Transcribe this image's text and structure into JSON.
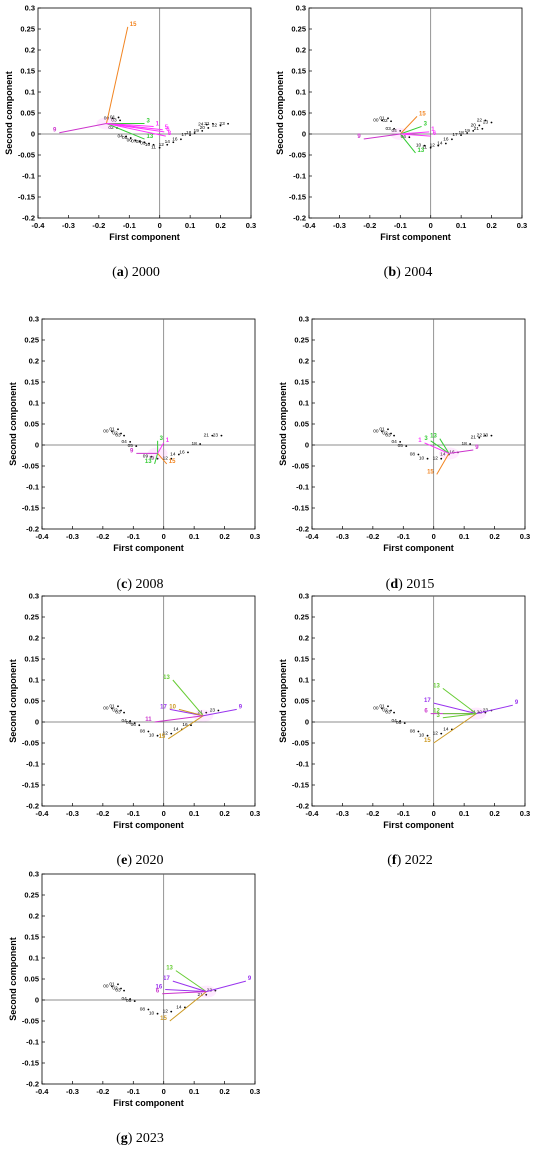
{
  "chart_data": [
    {
      "type": "scatter",
      "caption_letter": "a",
      "caption_year": "2000",
      "xlabel": "First component",
      "ylabel": "Second component",
      "xlim": [
        -0.4,
        0.3
      ],
      "ylim": [
        -0.2,
        0.3
      ],
      "xticks": [
        "-0.4",
        "-0.3",
        "-0.2",
        "-0.1",
        "0",
        "0.1",
        "0.2",
        "0.3"
      ],
      "yticks": [
        "-0.2",
        "-0.15",
        "-0.1",
        "-0.05",
        "0",
        "0.05",
        "0.1",
        "0.15",
        "0.2",
        "0.25",
        "0.3"
      ],
      "point_labels": [
        {
          "label": "00",
          "x": -0.175,
          "y": 0.035
        },
        {
          "label": "01",
          "x": -0.155,
          "y": 0.037
        },
        {
          "label": "02",
          "x": -0.16,
          "y": 0.012
        },
        {
          "label": "03",
          "x": -0.15,
          "y": 0.03
        },
        {
          "label": "04",
          "x": -0.13,
          "y": -0.008
        },
        {
          "label": "05",
          "x": -0.115,
          "y": -0.012
        },
        {
          "label": "06",
          "x": -0.1,
          "y": -0.018
        },
        {
          "label": "07",
          "x": -0.085,
          "y": -0.02
        },
        {
          "label": "08",
          "x": -0.07,
          "y": -0.022
        },
        {
          "label": "09",
          "x": -0.055,
          "y": -0.025
        },
        {
          "label": "10",
          "x": -0.04,
          "y": -0.028
        },
        {
          "label": "11",
          "x": -0.02,
          "y": -0.035
        },
        {
          "label": "12",
          "x": 0.005,
          "y": -0.028
        },
        {
          "label": "14",
          "x": 0.025,
          "y": -0.022
        },
        {
          "label": "16",
          "x": 0.05,
          "y": -0.015
        },
        {
          "label": "17",
          "x": 0.08,
          "y": -0.005
        },
        {
          "label": "18",
          "x": 0.095,
          "y": 0.0
        },
        {
          "label": "19",
          "x": 0.12,
          "y": 0.005
        },
        {
          "label": "20",
          "x": 0.14,
          "y": 0.012
        },
        {
          "label": "21",
          "x": 0.155,
          "y": 0.022
        },
        {
          "label": "22",
          "x": 0.18,
          "y": 0.018
        },
        {
          "label": "23",
          "x": 0.205,
          "y": 0.022
        },
        {
          "label": "24",
          "x": 0.135,
          "y": 0.02
        }
      ],
      "vectors": [
        {
          "label": "15",
          "x": -0.105,
          "y": 0.255,
          "color": "#f28522"
        },
        {
          "label": "9",
          "x": -0.33,
          "y": 0.003,
          "color": "#cc33cc"
        },
        {
          "label": "3",
          "x": -0.05,
          "y": 0.025,
          "color": "#33cc33"
        },
        {
          "label": "13",
          "x": -0.05,
          "y": -0.012,
          "color": "#33cc33"
        },
        {
          "label": "1",
          "x": -0.02,
          "y": 0.018,
          "color": "#ff33ff"
        },
        {
          "label": "5",
          "x": 0.01,
          "y": 0.01,
          "color": "#ff33ff"
        },
        {
          "label": "6",
          "x": 0.015,
          "y": 0.005,
          "color": "#ff33ff"
        },
        {
          "label": "8",
          "x": 0.02,
          "y": -0.005,
          "color": "#ff33ff"
        }
      ],
      "vector_origin": [
        -0.175,
        0.025
      ]
    },
    {
      "type": "scatter",
      "caption_letter": "b",
      "caption_year": "2004",
      "xlabel": "First component",
      "ylabel": "Second component",
      "xlim": [
        -0.4,
        0.3
      ],
      "ylim": [
        -0.2,
        0.3
      ],
      "xticks": [
        "-0.4",
        "-0.3",
        "-0.2",
        "-0.1",
        "0",
        "0.1",
        "0.2",
        "0.3"
      ],
      "yticks": [
        "-0.2",
        "-0.15",
        "-0.1",
        "-0.05",
        "0",
        "0.05",
        "0.1",
        "0.15",
        "0.2",
        "0.25",
        "0.3"
      ],
      "point_labels": [
        {
          "label": "00",
          "x": -0.18,
          "y": 0.03
        },
        {
          "label": "01",
          "x": -0.16,
          "y": 0.035
        },
        {
          "label": "02",
          "x": -0.15,
          "y": 0.028
        },
        {
          "label": "03",
          "x": -0.14,
          "y": 0.01
        },
        {
          "label": "04",
          "x": -0.12,
          "y": 0.005
        },
        {
          "label": "06",
          "x": -0.09,
          "y": -0.01
        },
        {
          "label": "10",
          "x": -0.04,
          "y": -0.03
        },
        {
          "label": "11",
          "x": -0.02,
          "y": -0.035
        },
        {
          "label": "12",
          "x": 0.005,
          "y": -0.03
        },
        {
          "label": "14",
          "x": 0.03,
          "y": -0.025
        },
        {
          "label": "16",
          "x": 0.05,
          "y": -0.015
        },
        {
          "label": "17",
          "x": 0.08,
          "y": -0.005
        },
        {
          "label": "18",
          "x": 0.1,
          "y": 0.0
        },
        {
          "label": "19",
          "x": 0.12,
          "y": 0.005
        },
        {
          "label": "20",
          "x": 0.14,
          "y": 0.018
        },
        {
          "label": "21",
          "x": 0.15,
          "y": 0.01
        },
        {
          "label": "22",
          "x": 0.16,
          "y": 0.03
        },
        {
          "label": "23",
          "x": 0.18,
          "y": 0.025
        }
      ],
      "vectors": [
        {
          "label": "15",
          "x": -0.045,
          "y": 0.042,
          "color": "#f28522"
        },
        {
          "label": "9",
          "x": -0.22,
          "y": -0.012,
          "color": "#cc33cc"
        },
        {
          "label": "3",
          "x": -0.03,
          "y": 0.018,
          "color": "#33cc33"
        },
        {
          "label": "13",
          "x": -0.05,
          "y": -0.045,
          "color": "#33cc33"
        },
        {
          "label": "1",
          "x": -0.005,
          "y": 0.005,
          "color": "#ff33ff"
        },
        {
          "label": "6",
          "x": 0.0,
          "y": -0.005,
          "color": "#ff33ff"
        }
      ],
      "vector_origin": [
        -0.1,
        0.0
      ]
    },
    {
      "type": "scatter",
      "caption_letter": "c",
      "caption_year": "2008",
      "xlabel": "First component",
      "ylabel": "Second component",
      "xlim": [
        -0.4,
        0.3
      ],
      "ylim": [
        -0.2,
        0.3
      ],
      "xticks": [
        "-0.4",
        "-0.3",
        "-0.2",
        "-0.1",
        "0",
        "0.1",
        "0.2",
        "0.3"
      ],
      "yticks": [
        "-0.2",
        "-0.15",
        "-0.1",
        "-0.05",
        "0",
        "0.05",
        "0.1",
        "0.15",
        "0.2",
        "0.25",
        "0.3"
      ],
      "point_labels": [
        {
          "label": "00",
          "x": -0.19,
          "y": 0.03
        },
        {
          "label": "01",
          "x": -0.17,
          "y": 0.035
        },
        {
          "label": "02",
          "x": -0.16,
          "y": 0.025
        },
        {
          "label": "03",
          "x": -0.15,
          "y": 0.02
        },
        {
          "label": "04",
          "x": -0.13,
          "y": 0.005
        },
        {
          "label": "05",
          "x": -0.11,
          "y": -0.005
        },
        {
          "label": "09",
          "x": -0.06,
          "y": -0.03
        },
        {
          "label": "10",
          "x": -0.04,
          "y": -0.035
        },
        {
          "label": "12",
          "x": 0.005,
          "y": -0.035
        },
        {
          "label": "14",
          "x": 0.03,
          "y": -0.025
        },
        {
          "label": "16",
          "x": 0.06,
          "y": -0.02
        },
        {
          "label": "18",
          "x": 0.1,
          "y": 0.0
        },
        {
          "label": "21",
          "x": 0.14,
          "y": 0.02
        },
        {
          "label": "23",
          "x": 0.17,
          "y": 0.02
        }
      ],
      "vectors": [
        {
          "label": "15",
          "x": 0.01,
          "y": -0.045,
          "color": "#f28522"
        },
        {
          "label": "9",
          "x": -0.09,
          "y": -0.02,
          "color": "#cc33cc"
        },
        {
          "label": "13",
          "x": -0.03,
          "y": -0.045,
          "color": "#33cc33"
        },
        {
          "label": "3",
          "x": -0.02,
          "y": 0.01,
          "color": "#33cc33"
        },
        {
          "label": "1",
          "x": 0.0,
          "y": 0.005,
          "color": "#ff33ff"
        }
      ],
      "vector_origin": [
        -0.02,
        -0.02
      ]
    },
    {
      "type": "scatter",
      "caption_letter": "d",
      "caption_year": "2015",
      "xlabel": "First component",
      "ylabel": "Second component",
      "xlim": [
        -0.4,
        0.3
      ],
      "ylim": [
        -0.2,
        0.3
      ],
      "xticks": [
        "-0.4",
        "-0.3",
        "-0.2",
        "-0.1",
        "0",
        "0.1",
        "0.2",
        "0.3"
      ],
      "yticks": [
        "-0.2",
        "-0.15",
        "-0.1",
        "-0.05",
        "0",
        "0.05",
        "0.1",
        "0.15",
        "0.2",
        "0.25",
        "0.3"
      ],
      "point_labels": [
        {
          "label": "00",
          "x": -0.19,
          "y": 0.03
        },
        {
          "label": "01",
          "x": -0.17,
          "y": 0.035
        },
        {
          "label": "02",
          "x": -0.16,
          "y": 0.025
        },
        {
          "label": "03",
          "x": -0.15,
          "y": 0.02
        },
        {
          "label": "04",
          "x": -0.13,
          "y": 0.005
        },
        {
          "label": "05",
          "x": -0.11,
          "y": -0.005
        },
        {
          "label": "08",
          "x": -0.07,
          "y": -0.025
        },
        {
          "label": "10",
          "x": -0.04,
          "y": -0.035
        },
        {
          "label": "12",
          "x": 0.005,
          "y": -0.035
        },
        {
          "label": "14",
          "x": 0.03,
          "y": -0.025
        },
        {
          "label": "16",
          "x": 0.06,
          "y": -0.02
        },
        {
          "label": "18",
          "x": 0.1,
          "y": 0.0
        },
        {
          "label": "21",
          "x": 0.13,
          "y": 0.015
        },
        {
          "label": "22",
          "x": 0.15,
          "y": 0.02
        },
        {
          "label": "23",
          "x": 0.17,
          "y": 0.02
        }
      ],
      "vectors": [
        {
          "label": "15",
          "x": 0.01,
          "y": -0.07,
          "color": "#f28522"
        },
        {
          "label": "9",
          "x": 0.13,
          "y": -0.012,
          "color": "#cc33cc"
        },
        {
          "label": "13",
          "x": 0.02,
          "y": 0.015,
          "color": "#33cc33"
        },
        {
          "label": "3",
          "x": -0.01,
          "y": 0.01,
          "color": "#33cc33"
        },
        {
          "label": "1",
          "x": -0.03,
          "y": 0.005,
          "color": "#ff33ff"
        }
      ],
      "vector_origin": [
        0.05,
        -0.02
      ]
    },
    {
      "type": "scatter",
      "caption_letter": "e",
      "caption_year": "2020",
      "xlabel": "First component",
      "ylabel": "Second component",
      "xlim": [
        -0.4,
        0.3
      ],
      "ylim": [
        -0.2,
        0.3
      ],
      "xticks": [
        "-0.4",
        "-0.3",
        "-0.2",
        "-0.1",
        "0",
        "0.1",
        "0.2",
        "0.3"
      ],
      "yticks": [
        "-0.2",
        "-0.15",
        "-0.1",
        "-0.05",
        "0",
        "0.05",
        "0.1",
        "0.15",
        "0.2",
        "0.25",
        "0.3"
      ],
      "point_labels": [
        {
          "label": "00",
          "x": -0.19,
          "y": 0.03
        },
        {
          "label": "01",
          "x": -0.17,
          "y": 0.035
        },
        {
          "label": "02",
          "x": -0.16,
          "y": 0.025
        },
        {
          "label": "03",
          "x": -0.15,
          "y": 0.02
        },
        {
          "label": "04",
          "x": -0.13,
          "y": 0.0
        },
        {
          "label": "05",
          "x": -0.115,
          "y": -0.005
        },
        {
          "label": "06",
          "x": -0.1,
          "y": -0.01
        },
        {
          "label": "08",
          "x": -0.07,
          "y": -0.025
        },
        {
          "label": "10",
          "x": -0.04,
          "y": -0.035
        },
        {
          "label": "12",
          "x": 0.005,
          "y": -0.03
        },
        {
          "label": "14",
          "x": 0.04,
          "y": -0.02
        },
        {
          "label": "16",
          "x": 0.07,
          "y": -0.01
        },
        {
          "label": "21",
          "x": 0.12,
          "y": 0.02
        },
        {
          "label": "23",
          "x": 0.16,
          "y": 0.025
        }
      ],
      "vectors": [
        {
          "label": "13",
          "x": 0.03,
          "y": 0.1,
          "color": "#66cc33"
        },
        {
          "label": "9",
          "x": 0.24,
          "y": 0.03,
          "color": "#9933ee"
        },
        {
          "label": "15",
          "x": 0.015,
          "y": -0.04,
          "color": "#cc9922"
        },
        {
          "label": "17",
          "x": 0.02,
          "y": 0.03,
          "color": "#9933ee"
        },
        {
          "label": "10",
          "x": 0.05,
          "y": 0.03,
          "color": "#cc9922"
        },
        {
          "label": "11",
          "x": -0.03,
          "y": 0.0,
          "color": "#cc33cc"
        }
      ],
      "vector_origin": [
        0.13,
        0.015
      ]
    },
    {
      "type": "scatter",
      "caption_letter": "f",
      "caption_year": "2022",
      "xlabel": "First component",
      "ylabel": "Second component",
      "xlim": [
        -0.4,
        0.3
      ],
      "ylim": [
        -0.2,
        0.3
      ],
      "xticks": [
        "-0.4",
        "-0.3",
        "-0.2",
        "-0.1",
        "0",
        "0.1",
        "0.2",
        "0.3"
      ],
      "yticks": [
        "-0.2",
        "-0.15",
        "-0.1",
        "-0.05",
        "0",
        "0.05",
        "0.1",
        "0.15",
        "0.2",
        "0.25",
        "0.3"
      ],
      "point_labels": [
        {
          "label": "00",
          "x": -0.19,
          "y": 0.03
        },
        {
          "label": "01",
          "x": -0.17,
          "y": 0.035
        },
        {
          "label": "02",
          "x": -0.16,
          "y": 0.025
        },
        {
          "label": "03",
          "x": -0.15,
          "y": 0.02
        },
        {
          "label": "04",
          "x": -0.13,
          "y": 0.0
        },
        {
          "label": "05",
          "x": -0.115,
          "y": -0.005
        },
        {
          "label": "08",
          "x": -0.07,
          "y": -0.025
        },
        {
          "label": "10",
          "x": -0.04,
          "y": -0.035
        },
        {
          "label": "12",
          "x": 0.005,
          "y": -0.03
        },
        {
          "label": "14",
          "x": 0.04,
          "y": -0.02
        },
        {
          "label": "21",
          "x": 0.13,
          "y": 0.02
        },
        {
          "label": "22",
          "x": 0.15,
          "y": 0.02
        },
        {
          "label": "23",
          "x": 0.17,
          "y": 0.025
        }
      ],
      "vectors": [
        {
          "label": "13",
          "x": 0.03,
          "y": 0.08,
          "color": "#66cc33"
        },
        {
          "label": "9",
          "x": 0.26,
          "y": 0.04,
          "color": "#9933ee"
        },
        {
          "label": "17",
          "x": 0.0,
          "y": 0.045,
          "color": "#9933ee"
        },
        {
          "label": "15",
          "x": 0.0,
          "y": -0.05,
          "color": "#cc9922"
        },
        {
          "label": "6",
          "x": -0.01,
          "y": 0.02,
          "color": "#cc33cc"
        },
        {
          "label": "12",
          "x": 0.03,
          "y": 0.02,
          "color": "#66cc33"
        },
        {
          "label": "3",
          "x": 0.03,
          "y": 0.01,
          "color": "#66cc33"
        }
      ],
      "vector_origin": [
        0.14,
        0.02
      ]
    },
    {
      "type": "scatter",
      "caption_letter": "g",
      "caption_year": "2023",
      "xlabel": "First component",
      "ylabel": "Second component",
      "xlim": [
        -0.4,
        0.3
      ],
      "ylim": [
        -0.2,
        0.3
      ],
      "xticks": [
        "-0.4",
        "-0.3",
        "-0.2",
        "-0.1",
        "0",
        "0.1",
        "0.2",
        "0.3"
      ],
      "yticks": [
        "-0.2",
        "-0.15",
        "-0.1",
        "-0.05",
        "0",
        "0.05",
        "0.1",
        "0.15",
        "0.2",
        "0.25",
        "0.3"
      ],
      "point_labels": [
        {
          "label": "00",
          "x": -0.19,
          "y": 0.03
        },
        {
          "label": "01",
          "x": -0.17,
          "y": 0.035
        },
        {
          "label": "02",
          "x": -0.16,
          "y": 0.025
        },
        {
          "label": "03",
          "x": -0.15,
          "y": 0.02
        },
        {
          "label": "04",
          "x": -0.13,
          "y": 0.0
        },
        {
          "label": "05",
          "x": -0.115,
          "y": -0.005
        },
        {
          "label": "08",
          "x": -0.07,
          "y": -0.025
        },
        {
          "label": "10",
          "x": -0.04,
          "y": -0.035
        },
        {
          "label": "12",
          "x": 0.005,
          "y": -0.03
        },
        {
          "label": "14",
          "x": 0.05,
          "y": -0.02
        },
        {
          "label": "21",
          "x": 0.12,
          "y": 0.01
        },
        {
          "label": "23",
          "x": 0.15,
          "y": 0.02
        }
      ],
      "vectors": [
        {
          "label": "13",
          "x": 0.04,
          "y": 0.07,
          "color": "#66cc33"
        },
        {
          "label": "9",
          "x": 0.27,
          "y": 0.045,
          "color": "#9933ee"
        },
        {
          "label": "17",
          "x": 0.03,
          "y": 0.045,
          "color": "#9933ee"
        },
        {
          "label": "15",
          "x": 0.02,
          "y": -0.05,
          "color": "#cc9922"
        },
        {
          "label": "16",
          "x": 0.005,
          "y": 0.025,
          "color": "#9933ee"
        },
        {
          "label": "6",
          "x": -0.005,
          "y": 0.015,
          "color": "#cc33cc"
        }
      ],
      "vector_origin": [
        0.14,
        0.02
      ]
    }
  ]
}
